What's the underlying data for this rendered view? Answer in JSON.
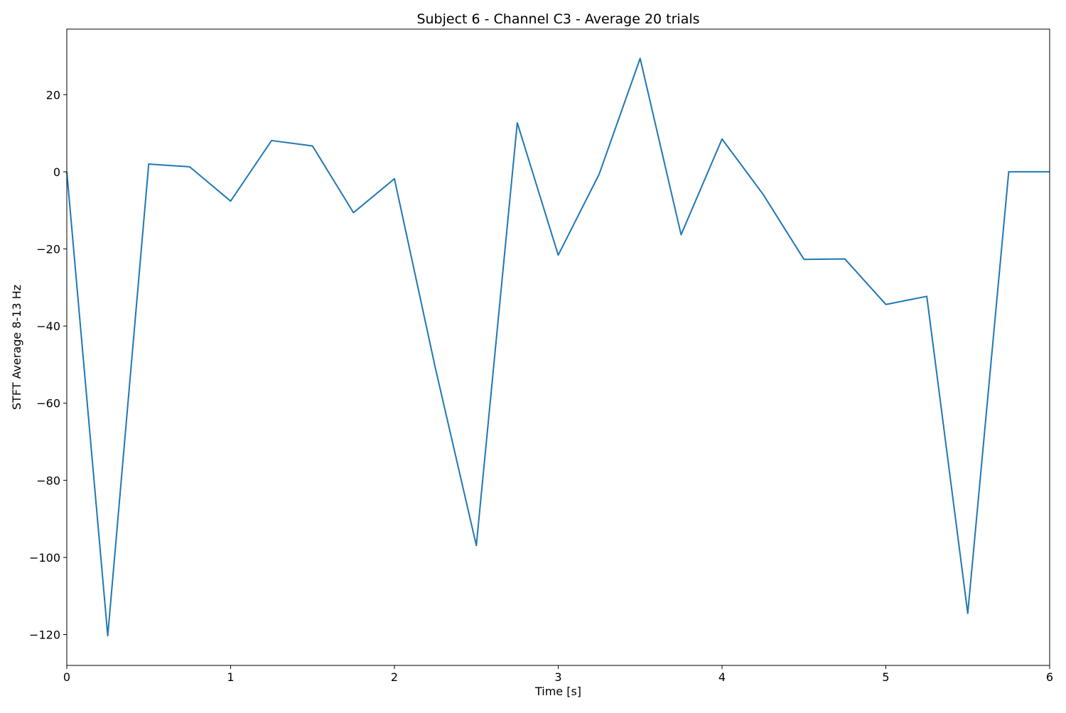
{
  "chart_data": {
    "type": "line",
    "title": "Subject 6 - Channel C3 - Average 20 trials",
    "xlabel": "Time [s]",
    "ylabel": "STFT Average 8-13 Hz",
    "xlim": [
      0,
      6
    ],
    "ylim": [
      -128,
      37
    ],
    "xticks": [
      0,
      1,
      2,
      3,
      4,
      5,
      6
    ],
    "xtick_labels": [
      "0",
      "1",
      "2",
      "3",
      "4",
      "5",
      "6"
    ],
    "yticks": [
      20,
      0,
      -20,
      -40,
      -60,
      -80,
      -100,
      -120
    ],
    "ytick_labels": [
      "20",
      "0",
      "−20",
      "−40",
      "−60",
      "−80",
      "−100",
      "−120"
    ],
    "grid": false,
    "series": [
      {
        "color": "#1f77b4",
        "x": [
          0,
          0.25,
          0.5,
          0.75,
          1.0,
          1.25,
          1.5,
          1.75,
          2.0,
          2.25,
          2.5,
          2.75,
          3.0,
          3.25,
          3.5,
          3.75,
          4.0,
          4.25,
          4.5,
          4.75,
          5.0,
          5.25,
          5.5,
          5.75,
          6.0
        ],
        "y": [
          0,
          -120.3,
          2.0,
          1.3,
          -7.6,
          8.1,
          6.7,
          -10.6,
          -1.8,
          -50.9,
          -96.9,
          12.7,
          -21.6,
          -0.6,
          29.4,
          -16.3,
          8.5,
          -5.8,
          -22.7,
          -22.6,
          -34.4,
          -32.3,
          -114.5,
          0,
          0
        ]
      }
    ]
  }
}
